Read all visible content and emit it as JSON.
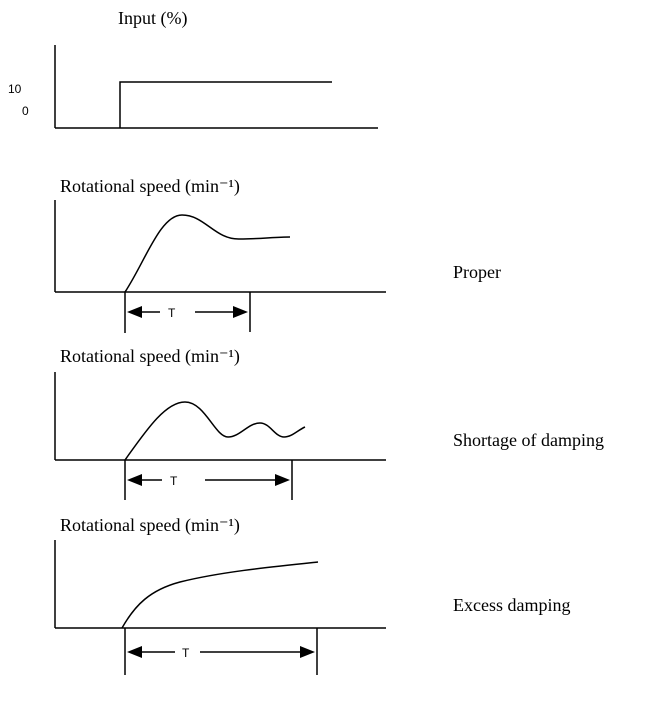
{
  "panels": [
    {
      "title": "Input (%)",
      "yticks": [
        "10",
        "0"
      ]
    },
    {
      "title": "Rotational speed (min⁻¹)",
      "marker": "T",
      "label": "Proper"
    },
    {
      "title": "Rotational speed (min⁻¹)",
      "marker": "T",
      "label": "Shortage of damping"
    },
    {
      "title": "Rotational speed (min⁻¹)",
      "marker": "T",
      "label": "Excess damping"
    }
  ]
}
